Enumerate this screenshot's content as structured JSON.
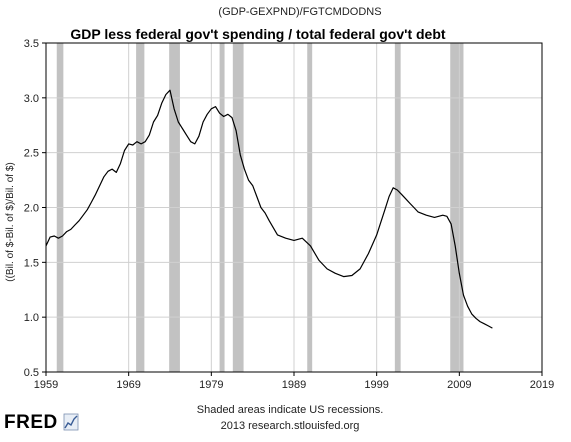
{
  "chart_data": {
    "type": "line",
    "series_header": "(GDP-GEXPND)/FGTCMDODNS",
    "annotation": "GDP less  federal gov't spending / total federal gov't debt",
    "ylabel": "((Bil. of $-Bil. of $)/Bil. of $)",
    "xlabel": "",
    "x_ticks": [
      "1959",
      "1969",
      "1979",
      "1989",
      "1999",
      "2009",
      "2019"
    ],
    "y_ticks": [
      "3.5",
      "3.0",
      "2.5",
      "2.0",
      "1.5",
      "1.0",
      "0.5"
    ],
    "xlim": [
      1959,
      2019
    ],
    "ylim": [
      0.5,
      3.5
    ],
    "grid": true,
    "recessions": [
      [
        1960.3,
        1961.1
      ],
      [
        1969.9,
        1970.9
      ],
      [
        1973.9,
        1975.2
      ],
      [
        1980.0,
        1980.6
      ],
      [
        1981.6,
        1982.9
      ],
      [
        1990.6,
        1991.2
      ],
      [
        2001.2,
        2001.9
      ],
      [
        2007.9,
        2009.5
      ]
    ],
    "series": [
      {
        "x": [
          1959.0,
          1959.5,
          1960.0,
          1960.5,
          1961.0,
          1961.5,
          1962.0,
          1962.5,
          1963.0,
          1963.5,
          1964.0,
          1964.5,
          1965.0,
          1965.5,
          1966.0,
          1966.5,
          1967.0,
          1967.5,
          1968.0,
          1968.5,
          1969.0,
          1969.5,
          1970.0,
          1970.5,
          1971.0,
          1971.5,
          1972.0,
          1972.5,
          1973.0,
          1973.5,
          1974.0,
          1974.5,
          1975.0,
          1975.5,
          1976.0,
          1976.5,
          1977.0,
          1977.5,
          1978.0,
          1978.5,
          1979.0,
          1979.5,
          1980.0,
          1980.5,
          1981.0,
          1981.5,
          1982.0,
          1982.5,
          1983.0,
          1983.5,
          1984.0,
          1984.5,
          1985.0,
          1985.5,
          1986.0,
          1987.0,
          1988.0,
          1989.0,
          1990.0,
          1991.0,
          1992.0,
          1993.0,
          1994.0,
          1995.0,
          1996.0,
          1997.0,
          1998.0,
          1999.0,
          2000.0,
          2000.5,
          2001.0,
          2001.5,
          2002.0,
          2002.5,
          2003.0,
          2003.5,
          2004.0,
          2005.0,
          2006.0,
          2007.0,
          2007.5,
          2008.0,
          2008.5,
          2009.0,
          2009.5,
          2010.0,
          2010.5,
          2011.0,
          2011.5,
          2012.0,
          2012.5,
          2013.0
        ],
        "y": [
          1.65,
          1.73,
          1.74,
          1.72,
          1.74,
          1.78,
          1.8,
          1.84,
          1.88,
          1.93,
          1.98,
          2.05,
          2.12,
          2.2,
          2.28,
          2.33,
          2.35,
          2.32,
          2.4,
          2.52,
          2.58,
          2.57,
          2.6,
          2.58,
          2.6,
          2.66,
          2.78,
          2.84,
          2.95,
          3.03,
          3.07,
          2.9,
          2.78,
          2.72,
          2.66,
          2.6,
          2.58,
          2.65,
          2.78,
          2.85,
          2.9,
          2.92,
          2.86,
          2.83,
          2.85,
          2.82,
          2.7,
          2.48,
          2.35,
          2.25,
          2.2,
          2.1,
          2.0,
          1.95,
          1.88,
          1.75,
          1.72,
          1.7,
          1.72,
          1.65,
          1.52,
          1.44,
          1.4,
          1.37,
          1.38,
          1.44,
          1.58,
          1.75,
          1.98,
          2.1,
          2.18,
          2.16,
          2.12,
          2.08,
          2.04,
          2.0,
          1.96,
          1.93,
          1.91,
          1.93,
          1.92,
          1.85,
          1.65,
          1.4,
          1.2,
          1.1,
          1.03,
          0.99,
          0.96,
          0.94,
          0.92,
          0.9
        ]
      }
    ]
  },
  "footer": {
    "note": "Shaded areas indicate US recessions.",
    "source": "2013 research.stlouisfed.org"
  },
  "logo": {
    "text": "FRED"
  },
  "colors": {
    "line": "#000000",
    "recession": "#c2c2c2",
    "grid": "#d0d0d0",
    "axis": "#000000",
    "background": "#ffffff"
  }
}
